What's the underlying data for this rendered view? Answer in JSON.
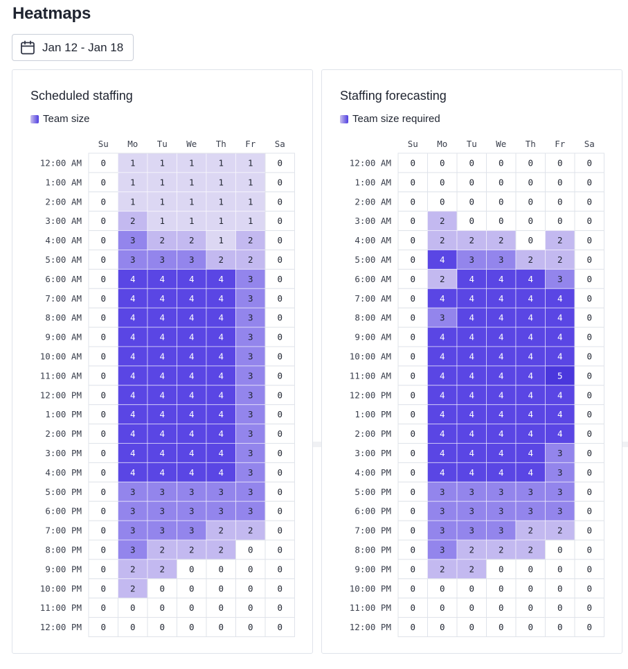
{
  "page": {
    "title": "Heatmaps"
  },
  "date_range": {
    "label": "Jan 12 - Jan 18",
    "icon": "calendar-icon"
  },
  "colors": {
    "text": "#1f2430",
    "border": "#dfe3ea",
    "scale": {
      "0": "#ffffff",
      "1": "#dcd7f3",
      "2": "#c3b9f0",
      "3": "#9385ec",
      "4": "#5a46e4",
      "5": "#4a37dc"
    }
  },
  "chart_data": [
    {
      "type": "heatmap",
      "title": "Scheduled staffing",
      "legend": "Team size",
      "days": [
        "Su",
        "Mo",
        "Tu",
        "We",
        "Th",
        "Fr",
        "Sa"
      ],
      "hours": [
        "12:00 AM",
        "1:00 AM",
        "2:00 AM",
        "3:00 AM",
        "4:00 AM",
        "5:00 AM",
        "6:00 AM",
        "7:00 AM",
        "8:00 AM",
        "9:00 AM",
        "10:00 AM",
        "11:00 AM",
        "12:00 PM",
        "1:00 PM",
        "2:00 PM",
        "3:00 PM",
        "4:00 PM",
        "5:00 PM",
        "6:00 PM",
        "7:00 PM",
        "8:00 PM",
        "9:00 PM",
        "10:00 PM",
        "11:00 PM",
        "12:00 PM"
      ],
      "values": [
        [
          0,
          1,
          1,
          1,
          1,
          1,
          0
        ],
        [
          0,
          1,
          1,
          1,
          1,
          1,
          0
        ],
        [
          0,
          1,
          1,
          1,
          1,
          1,
          0
        ],
        [
          0,
          2,
          1,
          1,
          1,
          1,
          0
        ],
        [
          0,
          3,
          2,
          2,
          1,
          2,
          0
        ],
        [
          0,
          3,
          3,
          3,
          2,
          2,
          0
        ],
        [
          0,
          4,
          4,
          4,
          4,
          3,
          0
        ],
        [
          0,
          4,
          4,
          4,
          4,
          3,
          0
        ],
        [
          0,
          4,
          4,
          4,
          4,
          3,
          0
        ],
        [
          0,
          4,
          4,
          4,
          4,
          3,
          0
        ],
        [
          0,
          4,
          4,
          4,
          4,
          3,
          0
        ],
        [
          0,
          4,
          4,
          4,
          4,
          3,
          0
        ],
        [
          0,
          4,
          4,
          4,
          4,
          3,
          0
        ],
        [
          0,
          4,
          4,
          4,
          4,
          3,
          0
        ],
        [
          0,
          4,
          4,
          4,
          4,
          3,
          0
        ],
        [
          0,
          4,
          4,
          4,
          4,
          3,
          0
        ],
        [
          0,
          4,
          4,
          4,
          4,
          3,
          0
        ],
        [
          0,
          3,
          3,
          3,
          3,
          3,
          0
        ],
        [
          0,
          3,
          3,
          3,
          3,
          3,
          0
        ],
        [
          0,
          3,
          3,
          3,
          2,
          2,
          0
        ],
        [
          0,
          3,
          2,
          2,
          2,
          0,
          0
        ],
        [
          0,
          2,
          2,
          0,
          0,
          0,
          0
        ],
        [
          0,
          2,
          0,
          0,
          0,
          0,
          0
        ],
        [
          0,
          0,
          0,
          0,
          0,
          0,
          0
        ],
        [
          0,
          0,
          0,
          0,
          0,
          0,
          0
        ]
      ]
    },
    {
      "type": "heatmap",
      "title": "Staffing forecasting",
      "legend": "Team size required",
      "days": [
        "Su",
        "Mo",
        "Tu",
        "We",
        "Th",
        "Fr",
        "Sa"
      ],
      "hours": [
        "12:00 AM",
        "1:00 AM",
        "2:00 AM",
        "3:00 AM",
        "4:00 AM",
        "5:00 AM",
        "6:00 AM",
        "7:00 AM",
        "8:00 AM",
        "9:00 AM",
        "10:00 AM",
        "11:00 AM",
        "12:00 PM",
        "1:00 PM",
        "2:00 PM",
        "3:00 PM",
        "4:00 PM",
        "5:00 PM",
        "6:00 PM",
        "7:00 PM",
        "8:00 PM",
        "9:00 PM",
        "10:00 PM",
        "11:00 PM",
        "12:00 PM"
      ],
      "values": [
        [
          0,
          0,
          0,
          0,
          0,
          0,
          0
        ],
        [
          0,
          0,
          0,
          0,
          0,
          0,
          0
        ],
        [
          0,
          0,
          0,
          0,
          0,
          0,
          0
        ],
        [
          0,
          2,
          0,
          0,
          0,
          0,
          0
        ],
        [
          0,
          2,
          2,
          2,
          0,
          2,
          0
        ],
        [
          0,
          4,
          3,
          3,
          2,
          2,
          0
        ],
        [
          0,
          2,
          4,
          4,
          4,
          3,
          0
        ],
        [
          0,
          4,
          4,
          4,
          4,
          4,
          0
        ],
        [
          0,
          3,
          4,
          4,
          4,
          4,
          0
        ],
        [
          0,
          4,
          4,
          4,
          4,
          4,
          0
        ],
        [
          0,
          4,
          4,
          4,
          4,
          4,
          0
        ],
        [
          0,
          4,
          4,
          4,
          4,
          5,
          0
        ],
        [
          0,
          4,
          4,
          4,
          4,
          4,
          0
        ],
        [
          0,
          4,
          4,
          4,
          4,
          4,
          0
        ],
        [
          0,
          4,
          4,
          4,
          4,
          4,
          0
        ],
        [
          0,
          4,
          4,
          4,
          4,
          3,
          0
        ],
        [
          0,
          4,
          4,
          4,
          4,
          3,
          0
        ],
        [
          0,
          3,
          3,
          3,
          3,
          3,
          0
        ],
        [
          0,
          3,
          3,
          3,
          3,
          3,
          0
        ],
        [
          0,
          3,
          3,
          3,
          2,
          2,
          0
        ],
        [
          0,
          3,
          2,
          2,
          2,
          0,
          0
        ],
        [
          0,
          2,
          2,
          0,
          0,
          0,
          0
        ],
        [
          0,
          0,
          0,
          0,
          0,
          0,
          0
        ],
        [
          0,
          0,
          0,
          0,
          0,
          0,
          0
        ],
        [
          0,
          0,
          0,
          0,
          0,
          0,
          0
        ]
      ]
    }
  ]
}
